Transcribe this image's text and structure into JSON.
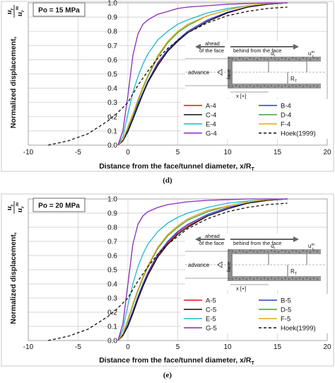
{
  "chart_data": [
    {
      "type": "line",
      "panel_label": "(d)",
      "condition_label": "Po = 15 MPa",
      "xlabel": "Distance from the face/tunnel diameter,  x/R",
      "xlabel_sub": "T",
      "ylabel": "Normalized displacement,",
      "ylabel_frac_num": "u",
      "ylabel_frac_num_sub": "r",
      "ylabel_frac_den": "u",
      "ylabel_frac_den_sub": "r",
      "ylabel_frac_den_sup": "m",
      "xlim": [
        -10,
        20
      ],
      "ylim": [
        0,
        1.0
      ],
      "x_ticks": [
        "-10",
        "-5",
        "0",
        "5",
        "10",
        "15",
        "20"
      ],
      "y_ticks": [
        "0.0",
        "0.1",
        "0.2",
        "0.3",
        "0.4",
        "0.5",
        "0.6",
        "0.7",
        "0.8",
        "0.9",
        "1.0"
      ],
      "grid": true,
      "legend_position": "lower-right",
      "series": [
        {
          "name": "A-4",
          "color": "#e8141c",
          "dash": "",
          "x": [
            -1,
            -0.5,
            0,
            0.5,
            1,
            1.5,
            2,
            3,
            4,
            5,
            6,
            8,
            10,
            12,
            14,
            16
          ],
          "y": [
            0,
            0.03,
            0.1,
            0.18,
            0.28,
            0.36,
            0.44,
            0.57,
            0.66,
            0.73,
            0.79,
            0.87,
            0.93,
            0.97,
            0.99,
            1.0
          ]
        },
        {
          "name": "B-4",
          "color": "#2b3bd4",
          "dash": "",
          "x": [
            -1,
            -0.5,
            0,
            0.5,
            1,
            1.5,
            2,
            3,
            4,
            5,
            6,
            8,
            10,
            12,
            14,
            16
          ],
          "y": [
            0,
            0.035,
            0.105,
            0.19,
            0.29,
            0.37,
            0.45,
            0.58,
            0.67,
            0.74,
            0.8,
            0.88,
            0.935,
            0.97,
            0.99,
            1.0
          ]
        },
        {
          "name": "C-4",
          "color": "#111111",
          "dash": "",
          "x": [
            -1,
            -0.5,
            0,
            0.5,
            1,
            1.5,
            2,
            3,
            4,
            5,
            6,
            8,
            10,
            12,
            14,
            16
          ],
          "y": [
            0,
            0.03,
            0.095,
            0.18,
            0.27,
            0.36,
            0.44,
            0.56,
            0.66,
            0.73,
            0.79,
            0.87,
            0.93,
            0.97,
            0.99,
            1.0
          ]
        },
        {
          "name": "D-4",
          "color": "#3aa63a",
          "dash": "",
          "x": [
            -1,
            -0.5,
            0,
            0.5,
            1,
            1.5,
            2,
            3,
            4,
            5,
            6,
            8,
            10,
            12,
            14,
            16
          ],
          "y": [
            0,
            0.04,
            0.12,
            0.21,
            0.31,
            0.4,
            0.48,
            0.62,
            0.72,
            0.79,
            0.84,
            0.91,
            0.95,
            0.98,
            0.995,
            1.0
          ]
        },
        {
          "name": "E-4",
          "color": "#1fb5d6",
          "dash": "",
          "x": [
            -1,
            -0.5,
            0,
            0.5,
            1,
            1.5,
            2,
            3,
            4,
            5,
            6,
            8,
            10,
            12,
            14,
            16
          ],
          "y": [
            0,
            0.06,
            0.22,
            0.37,
            0.48,
            0.57,
            0.64,
            0.74,
            0.8,
            0.85,
            0.88,
            0.93,
            0.96,
            0.98,
            0.995,
            1.0
          ]
        },
        {
          "name": "F-4",
          "color": "#e6a817",
          "dash": "",
          "x": [
            -1,
            -0.5,
            0,
            0.5,
            1,
            1.5,
            2,
            3,
            4,
            5,
            6,
            8,
            10,
            12,
            14,
            16
          ],
          "y": [
            0,
            0.04,
            0.13,
            0.22,
            0.32,
            0.41,
            0.49,
            0.63,
            0.73,
            0.8,
            0.85,
            0.91,
            0.95,
            0.98,
            0.995,
            1.0
          ]
        },
        {
          "name": "G-4",
          "color": "#8a2ab8",
          "dash": "",
          "x": [
            -1,
            -0.5,
            0,
            0.5,
            1,
            1.5,
            2,
            3,
            4,
            5,
            6,
            8,
            10,
            12,
            14,
            16
          ],
          "y": [
            0,
            0.1,
            0.35,
            0.63,
            0.78,
            0.85,
            0.88,
            0.92,
            0.94,
            0.96,
            0.97,
            0.98,
            0.99,
            0.995,
            1.0,
            1.0
          ]
        },
        {
          "name": "Hoek(1999)",
          "color": "#111111",
          "dash": "4,3",
          "x": [
            -8,
            -6,
            -4,
            -2,
            -1,
            0,
            1,
            2,
            3,
            4,
            6,
            8,
            10,
            12,
            14,
            16
          ],
          "y": [
            0.0,
            0.03,
            0.08,
            0.17,
            0.23,
            0.3,
            0.42,
            0.52,
            0.61,
            0.68,
            0.79,
            0.86,
            0.91,
            0.94,
            0.96,
            0.97
          ]
        }
      ]
    },
    {
      "type": "line",
      "panel_label": "(e)",
      "condition_label": "Po = 20 MPa",
      "xlabel": "Distance from the face/tunnel diameter,  x/R",
      "xlabel_sub": "T",
      "ylabel": "Normalized displacement,",
      "ylabel_frac_num": "u",
      "ylabel_frac_num_sub": "r",
      "ylabel_frac_den": "u",
      "ylabel_frac_den_sub": "r",
      "ylabel_frac_den_sup": "m",
      "xlim": [
        -10,
        20
      ],
      "ylim": [
        0,
        1.0
      ],
      "x_ticks": [
        "-10",
        "-5",
        "0",
        "5",
        "10",
        "15",
        "20"
      ],
      "y_ticks": [
        "0.0",
        "0.1",
        "0.2",
        "0.3",
        "0.4",
        "0.5",
        "0.6",
        "0.7",
        "0.8",
        "0.9",
        "1.0"
      ],
      "grid": true,
      "legend_position": "lower-right",
      "series": [
        {
          "name": "A-5",
          "color": "#e8141c",
          "dash": "",
          "x": [
            -1,
            -0.5,
            0,
            0.5,
            1,
            1.5,
            2,
            3,
            4,
            5,
            6,
            8,
            10,
            12,
            14,
            16
          ],
          "y": [
            0,
            0.04,
            0.11,
            0.2,
            0.3,
            0.39,
            0.47,
            0.6,
            0.69,
            0.76,
            0.81,
            0.88,
            0.93,
            0.97,
            0.99,
            1.0
          ]
        },
        {
          "name": "B-5",
          "color": "#2b3bd4",
          "dash": "",
          "x": [
            -1,
            -0.5,
            0,
            0.5,
            1,
            1.5,
            2,
            3,
            4,
            5,
            6,
            8,
            10,
            12,
            14,
            16
          ],
          "y": [
            0,
            0.04,
            0.115,
            0.21,
            0.31,
            0.4,
            0.48,
            0.61,
            0.7,
            0.77,
            0.82,
            0.89,
            0.94,
            0.97,
            0.99,
            1.0
          ]
        },
        {
          "name": "C-5",
          "color": "#111111",
          "dash": "",
          "x": [
            -1,
            -0.5,
            0,
            0.5,
            1,
            1.5,
            2,
            3,
            4,
            5,
            6,
            8,
            10,
            12,
            14,
            16
          ],
          "y": [
            0,
            0.035,
            0.1,
            0.19,
            0.29,
            0.38,
            0.46,
            0.59,
            0.68,
            0.75,
            0.8,
            0.88,
            0.93,
            0.97,
            0.99,
            1.0
          ]
        },
        {
          "name": "D-5",
          "color": "#3aa63a",
          "dash": "",
          "x": [
            -1,
            -0.5,
            0,
            0.5,
            1,
            1.5,
            2,
            3,
            4,
            5,
            6,
            8,
            10,
            12,
            14,
            16
          ],
          "y": [
            0,
            0.05,
            0.14,
            0.25,
            0.35,
            0.44,
            0.52,
            0.65,
            0.74,
            0.8,
            0.85,
            0.91,
            0.95,
            0.98,
            0.995,
            1.0
          ]
        },
        {
          "name": "E-5",
          "color": "#1fb5d6",
          "dash": "",
          "x": [
            -1,
            -0.5,
            0,
            0.5,
            1,
            1.5,
            2,
            3,
            4,
            5,
            6,
            8,
            10,
            12,
            14,
            16
          ],
          "y": [
            0,
            0.08,
            0.25,
            0.4,
            0.52,
            0.61,
            0.68,
            0.77,
            0.83,
            0.87,
            0.9,
            0.94,
            0.97,
            0.985,
            0.995,
            1.0
          ]
        },
        {
          "name": "F-5",
          "color": "#e6a817",
          "dash": "",
          "x": [
            -1,
            -0.5,
            0,
            0.5,
            1,
            1.5,
            2,
            3,
            4,
            5,
            6,
            8,
            10,
            12,
            14,
            16
          ],
          "y": [
            0,
            0.05,
            0.15,
            0.26,
            0.36,
            0.45,
            0.53,
            0.66,
            0.75,
            0.81,
            0.86,
            0.92,
            0.95,
            0.98,
            0.995,
            1.0
          ]
        },
        {
          "name": "G-5",
          "color": "#8a2ab8",
          "dash": "",
          "x": [
            -1,
            -0.5,
            0,
            0.5,
            1,
            1.5,
            2,
            3,
            4,
            5,
            6,
            8,
            10,
            12,
            14,
            16
          ],
          "y": [
            0,
            0.12,
            0.4,
            0.68,
            0.82,
            0.88,
            0.91,
            0.94,
            0.96,
            0.97,
            0.98,
            0.99,
            0.995,
            1.0,
            1.0,
            1.0
          ]
        },
        {
          "name": "Hoek(1999)",
          "color": "#111111",
          "dash": "4,3",
          "x": [
            -8,
            -6,
            -4,
            -2,
            -1,
            0,
            1,
            2,
            3,
            4,
            6,
            8,
            10,
            12,
            14,
            16
          ],
          "y": [
            0.0,
            0.03,
            0.08,
            0.17,
            0.23,
            0.3,
            0.42,
            0.52,
            0.61,
            0.68,
            0.79,
            0.86,
            0.91,
            0.94,
            0.96,
            0.97
          ]
        }
      ]
    }
  ],
  "inset": {
    "ahead_label_line1": "ahead",
    "ahead_label_line2": "of the face",
    "behind_label": "behind from the face",
    "face_label": "face",
    "advance_label": "advance",
    "ur_label": "u",
    "ur_sub": "r",
    "urm_label": "u",
    "urm_sup": "m",
    "urm_sub": "r",
    "rt_label": "R",
    "rt_sub": "T",
    "x_label": "x [+]"
  }
}
